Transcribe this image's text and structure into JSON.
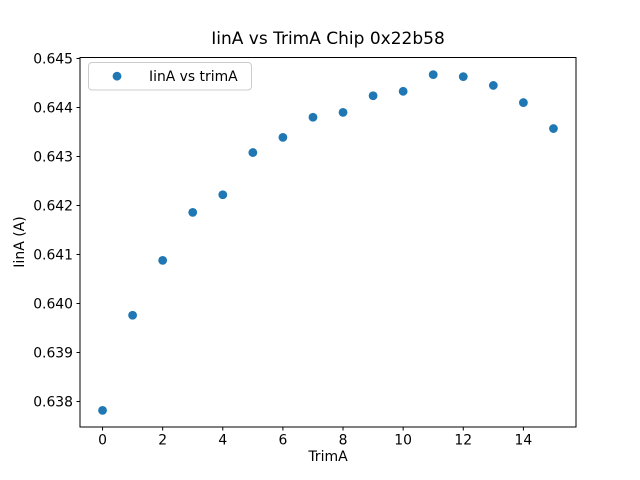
{
  "chart_data": {
    "type": "scatter",
    "title": "IinA vs TrimA Chip 0x22b58",
    "xlabel": "TrimA",
    "ylabel": "IinA (A)",
    "legend": {
      "entries": [
        "IinA vs trimA"
      ],
      "position": "upper left"
    },
    "marker": {
      "shape": "circle",
      "color": "#1f77b4",
      "radius_px": 4.4
    },
    "x": [
      0,
      1,
      2,
      3,
      4,
      5,
      6,
      7,
      8,
      9,
      10,
      11,
      12,
      13,
      14,
      15
    ],
    "y": [
      0.63782,
      0.63976,
      0.64088,
      0.64186,
      0.64222,
      0.64308,
      0.64339,
      0.6438,
      0.6439,
      0.64424,
      0.64433,
      0.64467,
      0.64463,
      0.64445,
      0.6441,
      0.64357
    ],
    "xlim": [
      -0.75,
      15.75
    ],
    "ylim": [
      0.63748,
      0.64502
    ],
    "xticks": {
      "values": [
        0,
        2,
        4,
        6,
        8,
        10,
        12,
        14
      ],
      "labels": [
        "0",
        "2",
        "4",
        "6",
        "8",
        "10",
        "12",
        "14"
      ]
    },
    "yticks": {
      "values": [
        0.638,
        0.639,
        0.64,
        0.641,
        0.642,
        0.643,
        0.644,
        0.645
      ],
      "labels": [
        "0.638",
        "0.639",
        "0.640",
        "0.641",
        "0.642",
        "0.643",
        "0.644",
        "0.645"
      ]
    },
    "grid": false,
    "frame_color": "#000000",
    "background_color": "#ffffff"
  }
}
